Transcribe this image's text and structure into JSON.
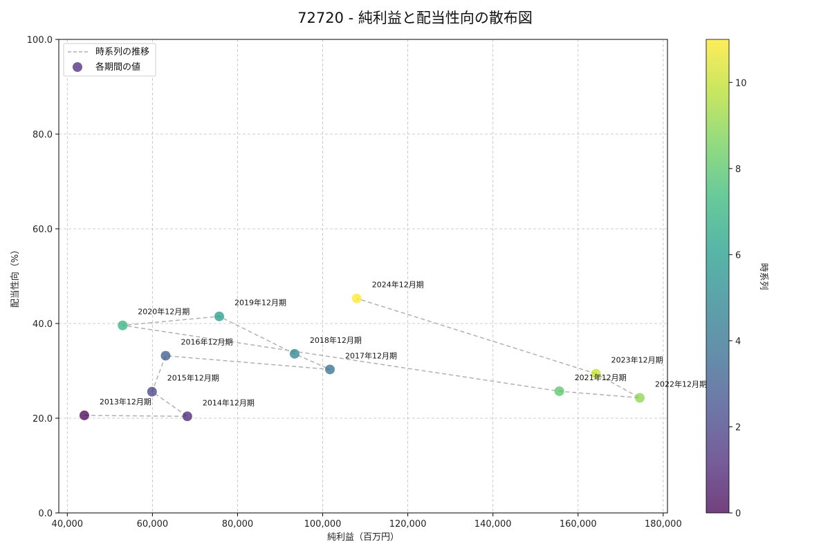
{
  "chart_data": {
    "type": "scatter",
    "title": "72720 - 純利益と配当性向の散布図",
    "xlabel": "純利益（百万円）",
    "ylabel": "配当性向（%）",
    "xlim": [
      38000,
      181000
    ],
    "ylim": [
      0,
      100
    ],
    "x_ticks": [
      40000,
      60000,
      80000,
      100000,
      120000,
      140000,
      160000,
      180000
    ],
    "x_tick_labels": [
      "40,000",
      "60,000",
      "80,000",
      "100,000",
      "120,000",
      "140,000",
      "160,000",
      "180,000"
    ],
    "y_ticks": [
      0,
      20,
      40,
      60,
      80,
      100
    ],
    "y_tick_labels": [
      "0.0",
      "20.0",
      "40.0",
      "60.0",
      "80.0",
      "100.0"
    ],
    "grid": true,
    "legend": {
      "placement": "top-left",
      "entries": [
        {
          "label": "時系列の推移",
          "kind": "line"
        },
        {
          "label": "各期間の値",
          "kind": "marker"
        }
      ]
    },
    "colorbar": {
      "label": "時系列",
      "min": 0,
      "max": 11,
      "ticks": [
        0,
        2,
        4,
        6,
        8,
        10
      ],
      "tick_labels": [
        "0",
        "2",
        "4",
        "6",
        "8",
        "10"
      ],
      "colormap": [
        "#440154",
        "#482878",
        "#3e4989",
        "#31688e",
        "#26828e",
        "#1f9e89",
        "#35b779",
        "#6ece58",
        "#b5de2b",
        "#fde725"
      ]
    },
    "line_color": "#b0b0b0",
    "points": [
      {
        "label": "2013年12月期",
        "x": 44000,
        "y": 20.6,
        "t": 0
      },
      {
        "label": "2014年12月期",
        "x": 68200,
        "y": 20.4,
        "t": 1
      },
      {
        "label": "2015年12月期",
        "x": 59900,
        "y": 25.6,
        "t": 2
      },
      {
        "label": "2016年12月期",
        "x": 63100,
        "y": 33.2,
        "t": 3
      },
      {
        "label": "2017年12月期",
        "x": 101700,
        "y": 30.3,
        "t": 4
      },
      {
        "label": "2018年12月期",
        "x": 93400,
        "y": 33.6,
        "t": 5
      },
      {
        "label": "2019年12月期",
        "x": 75700,
        "y": 41.5,
        "t": 6
      },
      {
        "label": "2020年12月期",
        "x": 53000,
        "y": 39.6,
        "t": 7
      },
      {
        "label": "2021年12月期",
        "x": 155600,
        "y": 25.7,
        "t": 8
      },
      {
        "label": "2022年12月期",
        "x": 174500,
        "y": 24.3,
        "t": 9
      },
      {
        "label": "2023年12月期",
        "x": 164200,
        "y": 29.4,
        "t": 10
      },
      {
        "label": "2024年12月期",
        "x": 108000,
        "y": 45.3,
        "t": 11
      }
    ]
  }
}
